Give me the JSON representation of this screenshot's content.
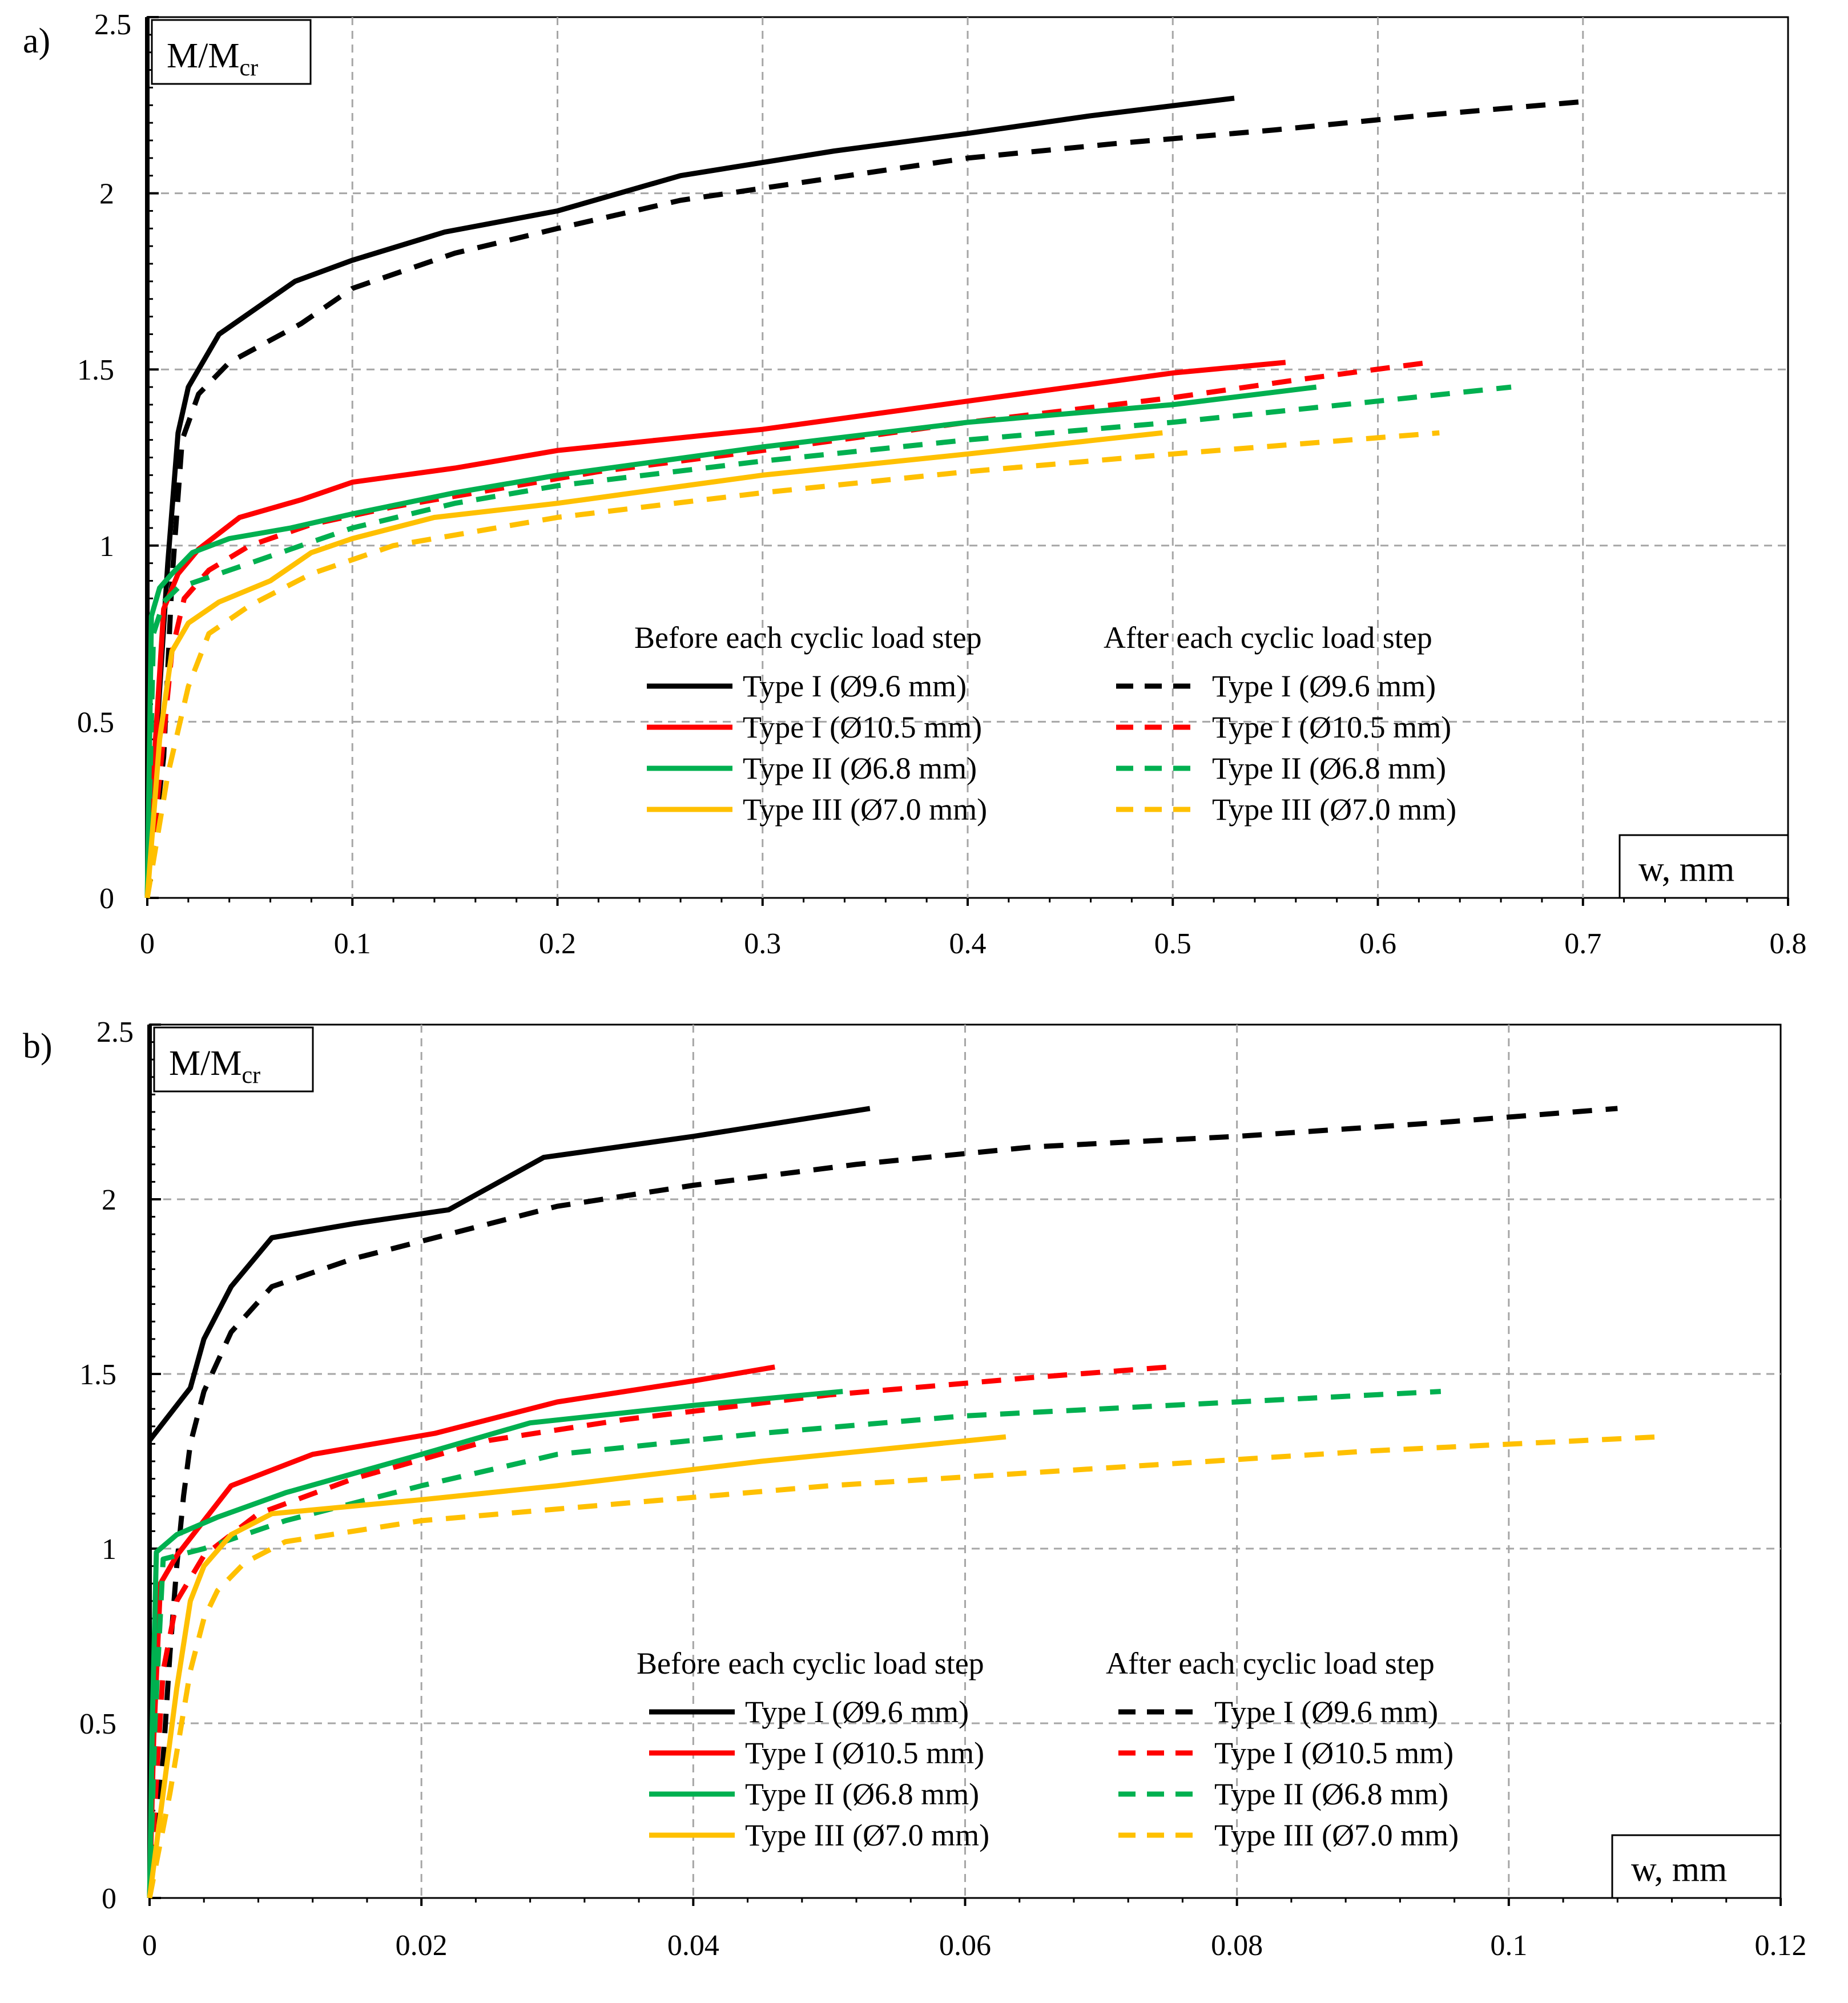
{
  "colors": {
    "black": "#000000",
    "red": "#ff0000",
    "green": "#00b050",
    "yellow": "#ffc000",
    "grid": "#a6a6a6"
  },
  "legend": {
    "before_title": "Before each cyclic load step",
    "after_title": "After each cyclic load step"
  },
  "chart_data": [
    {
      "panel_label": "a)",
      "type": "line",
      "ylabel_main": "M/M",
      "ylabel_sub": "cr",
      "xlabel": "w, mm",
      "xlim": [
        0,
        0.8
      ],
      "ylim": [
        0,
        2.5
      ],
      "xticks": [
        "0",
        "0.1",
        "0.2",
        "0.3",
        "0.4",
        "0.5",
        "0.6",
        "0.7",
        "0.8"
      ],
      "yticks": [
        "0",
        "0.5",
        "1",
        "1.5",
        "2",
        "2.5"
      ],
      "grid": true,
      "legend_position": "lower-right",
      "series": [
        {
          "name": "Type I (Ø9.6 mm)",
          "group": "before",
          "color": "#000000",
          "dashed": false,
          "x": [
            0,
            0.005,
            0.01,
            0.015,
            0.02,
            0.035,
            0.072,
            0.1,
            0.145,
            0.2,
            0.26,
            0.335,
            0.4,
            0.46,
            0.53
          ],
          "y": [
            0,
            0.5,
            0.95,
            1.32,
            1.45,
            1.6,
            1.75,
            1.81,
            1.89,
            1.95,
            2.05,
            2.12,
            2.17,
            2.22,
            2.27
          ]
        },
        {
          "name": "Type I (Ø9.6 mm)",
          "group": "after",
          "color": "#000000",
          "dashed": true,
          "x": [
            0,
            0.008,
            0.012,
            0.017,
            0.025,
            0.04,
            0.075,
            0.1,
            0.15,
            0.2,
            0.26,
            0.33,
            0.4,
            0.47,
            0.55,
            0.62,
            0.7
          ],
          "y": [
            0,
            0.4,
            0.9,
            1.3,
            1.43,
            1.52,
            1.63,
            1.73,
            1.83,
            1.9,
            1.98,
            2.04,
            2.1,
            2.14,
            2.18,
            2.22,
            2.26
          ]
        },
        {
          "name": "Type I (Ø10.5 mm)",
          "group": "before",
          "color": "#ff0000",
          "dashed": false,
          "x": [
            0,
            0.004,
            0.008,
            0.015,
            0.025,
            0.045,
            0.075,
            0.1,
            0.15,
            0.2,
            0.25,
            0.3,
            0.35,
            0.4,
            0.45,
            0.5,
            0.555
          ],
          "y": [
            0,
            0.45,
            0.82,
            0.92,
            0.99,
            1.08,
            1.13,
            1.18,
            1.22,
            1.27,
            1.3,
            1.33,
            1.37,
            1.41,
            1.45,
            1.49,
            1.52
          ]
        },
        {
          "name": "Type I (Ø10.5 mm)",
          "group": "after",
          "color": "#ff0000",
          "dashed": true,
          "x": [
            0,
            0.007,
            0.012,
            0.018,
            0.03,
            0.05,
            0.08,
            0.12,
            0.17,
            0.22,
            0.3,
            0.4,
            0.5,
            0.56,
            0.625
          ],
          "y": [
            0,
            0.4,
            0.7,
            0.85,
            0.93,
            1.0,
            1.06,
            1.11,
            1.16,
            1.21,
            1.27,
            1.35,
            1.42,
            1.47,
            1.52
          ]
        },
        {
          "name": "Type II (Ø6.8 mm)",
          "group": "before",
          "color": "#00b050",
          "dashed": false,
          "x": [
            0,
            0.002,
            0.006,
            0.012,
            0.022,
            0.04,
            0.07,
            0.1,
            0.15,
            0.2,
            0.3,
            0.4,
            0.5,
            0.57
          ],
          "y": [
            0,
            0.8,
            0.88,
            0.92,
            0.98,
            1.02,
            1.05,
            1.09,
            1.15,
            1.2,
            1.28,
            1.35,
            1.4,
            1.45
          ]
        },
        {
          "name": "Type II (Ø6.8 mm)",
          "group": "after",
          "color": "#00b050",
          "dashed": true,
          "x": [
            0,
            0.003,
            0.008,
            0.015,
            0.025,
            0.05,
            0.1,
            0.15,
            0.2,
            0.3,
            0.4,
            0.5,
            0.6,
            0.665
          ],
          "y": [
            0,
            0.75,
            0.84,
            0.88,
            0.9,
            0.95,
            1.05,
            1.12,
            1.17,
            1.24,
            1.3,
            1.35,
            1.41,
            1.45
          ]
        },
        {
          "name": "Type III (Ø7.0 mm)",
          "group": "before",
          "color": "#ffc000",
          "dashed": false,
          "x": [
            0,
            0.006,
            0.012,
            0.02,
            0.035,
            0.06,
            0.08,
            0.1,
            0.14,
            0.2,
            0.3,
            0.4,
            0.495
          ],
          "y": [
            0,
            0.45,
            0.7,
            0.78,
            0.84,
            0.9,
            0.98,
            1.02,
            1.08,
            1.12,
            1.2,
            1.26,
            1.32
          ]
        },
        {
          "name": "Type III (Ø7.0 mm)",
          "group": "after",
          "color": "#ffc000",
          "dashed": true,
          "x": [
            0,
            0.01,
            0.02,
            0.03,
            0.05,
            0.08,
            0.12,
            0.2,
            0.3,
            0.4,
            0.5,
            0.63
          ],
          "y": [
            0,
            0.35,
            0.6,
            0.75,
            0.83,
            0.92,
            1.0,
            1.08,
            1.15,
            1.21,
            1.26,
            1.32
          ]
        }
      ]
    },
    {
      "panel_label": "b)",
      "type": "line",
      "ylabel_main": "M/M",
      "ylabel_sub": "cr",
      "xlabel": "w, mm",
      "xlim": [
        0,
        0.12
      ],
      "ylim": [
        0,
        2.5
      ],
      "xticks": [
        "0",
        "0.02",
        "0.04",
        "0.06",
        "0.08",
        "0.1",
        "0.12"
      ],
      "yticks": [
        "0",
        "0.5",
        "1",
        "1.5",
        "2",
        "2.5"
      ],
      "grid": true,
      "legend_position": "lower-right",
      "series": [
        {
          "name": "Type I (Ø9.6 mm)",
          "group": "before",
          "color": "#000000",
          "dashed": false,
          "x": [
            0,
            0.003,
            0.004,
            0.006,
            0.009,
            0.015,
            0.022,
            0.029,
            0.04,
            0.053
          ],
          "y": [
            1.31,
            1.46,
            1.6,
            1.75,
            1.89,
            1.93,
            1.97,
            2.12,
            2.18,
            2.26
          ]
        },
        {
          "name": "Type I (Ø9.6 mm)",
          "group": "after",
          "color": "#000000",
          "dashed": true,
          "x": [
            0,
            0.001,
            0.0015,
            0.002,
            0.0025,
            0.003,
            0.004,
            0.006,
            0.009,
            0.015,
            0.022,
            0.03,
            0.04,
            0.052,
            0.065,
            0.08,
            0.095,
            0.108
          ],
          "y": [
            0,
            0.4,
            0.7,
            0.95,
            1.15,
            1.3,
            1.45,
            1.62,
            1.75,
            1.83,
            1.9,
            1.98,
            2.04,
            2.1,
            2.15,
            2.18,
            2.22,
            2.26
          ]
        },
        {
          "name": "Type I (Ø10.5 mm)",
          "group": "before",
          "color": "#ff0000",
          "dashed": false,
          "x": [
            0,
            0.0003,
            0.0008,
            0.002,
            0.004,
            0.006,
            0.012,
            0.021,
            0.03,
            0.04,
            0.046
          ],
          "y": [
            0,
            0.45,
            0.9,
            0.98,
            1.08,
            1.18,
            1.27,
            1.33,
            1.42,
            1.48,
            1.52
          ]
        },
        {
          "name": "Type I (Ø10.5 mm)",
          "group": "after",
          "color": "#ff0000",
          "dashed": true,
          "x": [
            0,
            0.0006,
            0.001,
            0.002,
            0.004,
            0.008,
            0.015,
            0.025,
            0.035,
            0.05,
            0.065,
            0.075
          ],
          "y": [
            0,
            0.4,
            0.65,
            0.85,
            0.98,
            1.1,
            1.2,
            1.31,
            1.37,
            1.44,
            1.49,
            1.52
          ]
        },
        {
          "name": "Type II (Ø6.8 mm)",
          "group": "before",
          "color": "#00b050",
          "dashed": false,
          "x": [
            0,
            0.0002,
            0.0005,
            0.002,
            0.005,
            0.01,
            0.02,
            0.028,
            0.04,
            0.051
          ],
          "y": [
            0,
            0.5,
            0.99,
            1.04,
            1.09,
            1.16,
            1.27,
            1.36,
            1.41,
            1.45
          ]
        },
        {
          "name": "Type II (Ø6.8 mm)",
          "group": "after",
          "color": "#00b050",
          "dashed": true,
          "x": [
            0,
            0.0004,
            0.001,
            0.004,
            0.01,
            0.02,
            0.03,
            0.045,
            0.06,
            0.08,
            0.095
          ],
          "y": [
            0,
            0.5,
            0.97,
            1.0,
            1.08,
            1.18,
            1.27,
            1.33,
            1.38,
            1.42,
            1.45
          ]
        },
        {
          "name": "Type III (Ø7.0 mm)",
          "group": "before",
          "color": "#ffc000",
          "dashed": false,
          "x": [
            0,
            0.001,
            0.002,
            0.003,
            0.004,
            0.006,
            0.009,
            0.02,
            0.03,
            0.045,
            0.063
          ],
          "y": [
            0,
            0.3,
            0.6,
            0.85,
            0.95,
            1.04,
            1.1,
            1.14,
            1.18,
            1.25,
            1.32
          ]
        },
        {
          "name": "Type III (Ø7.0 mm)",
          "group": "after",
          "color": "#ffc000",
          "dashed": true,
          "x": [
            0,
            0.0015,
            0.003,
            0.004,
            0.005,
            0.007,
            0.01,
            0.02,
            0.035,
            0.05,
            0.07,
            0.09,
            0.111
          ],
          "y": [
            0,
            0.3,
            0.65,
            0.8,
            0.88,
            0.96,
            1.02,
            1.08,
            1.13,
            1.18,
            1.23,
            1.28,
            1.32
          ]
        }
      ]
    }
  ]
}
